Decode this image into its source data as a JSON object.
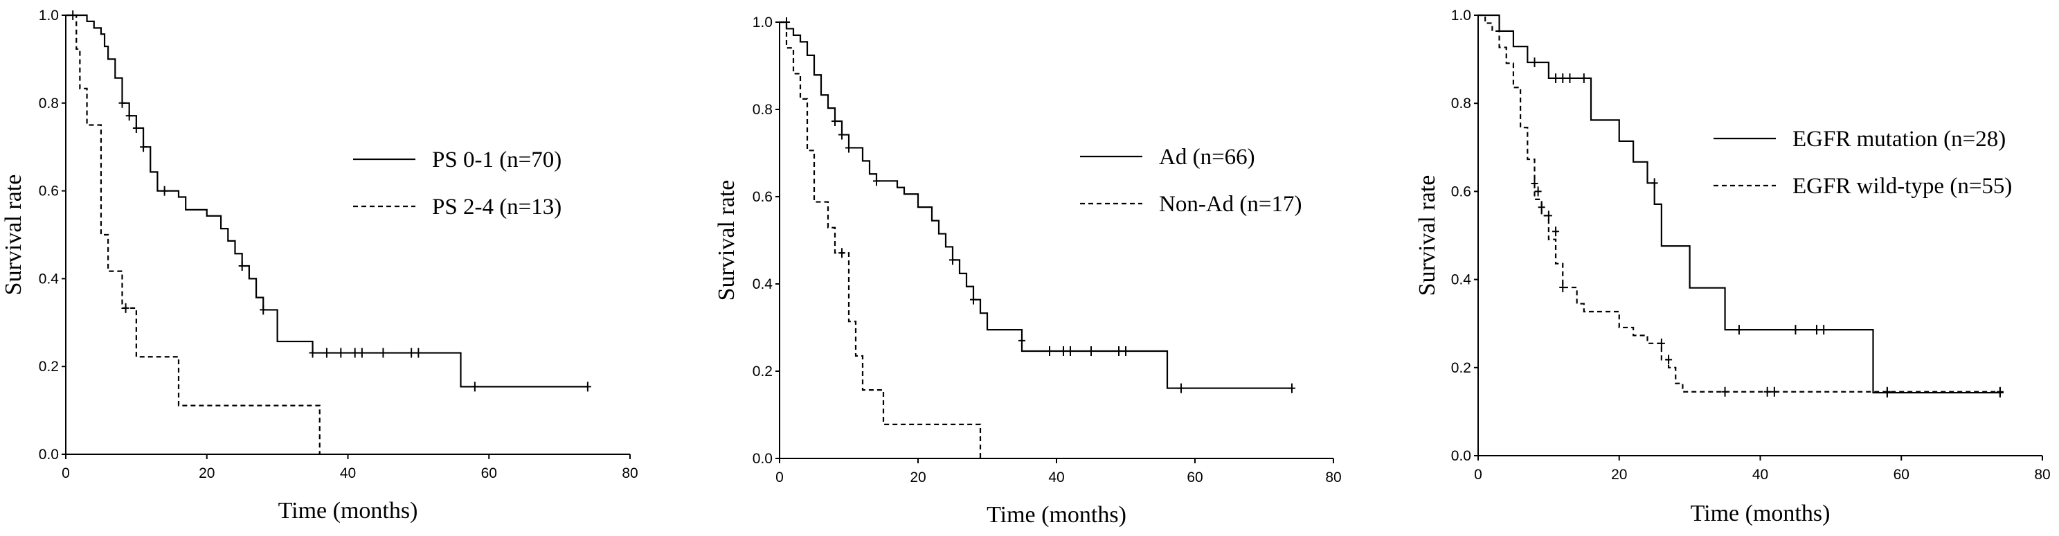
{
  "chart_data": [
    {
      "type": "line",
      "xlabel": "Time (months)",
      "ylabel": "Survival rate",
      "xlim": [
        0,
        80
      ],
      "ylim": [
        0,
        1.0
      ],
      "x_ticks": [
        0,
        20,
        40,
        60,
        80
      ],
      "y_ticks": [
        0.0,
        0.2,
        0.4,
        0.6,
        0.8,
        1.0
      ],
      "legend_position": "right",
      "series": [
        {
          "name": "PS 0-1 (n=70)",
          "style": "solid",
          "steps": [
            [
              0,
              1.0
            ],
            [
              2,
              1.0
            ],
            [
              3,
              0.986
            ],
            [
              4,
              0.971
            ],
            [
              5,
              0.957
            ],
            [
              5.5,
              0.929
            ],
            [
              6,
              0.9
            ],
            [
              7,
              0.857
            ],
            [
              8,
              0.8
            ],
            [
              9,
              0.771
            ],
            [
              10,
              0.743
            ],
            [
              11,
              0.7
            ],
            [
              12,
              0.643
            ],
            [
              13,
              0.6
            ],
            [
              16,
              0.586
            ],
            [
              17,
              0.557
            ],
            [
              20,
              0.543
            ],
            [
              22,
              0.514
            ],
            [
              23,
              0.486
            ],
            [
              24,
              0.457
            ],
            [
              25,
              0.429
            ],
            [
              26,
              0.4
            ],
            [
              27,
              0.357
            ],
            [
              28,
              0.329
            ],
            [
              30,
              0.257
            ],
            [
              35,
              0.231
            ],
            [
              56,
              0.154
            ],
            [
              74,
              0.154
            ]
          ],
          "censored": [
            [
              8,
              0.8
            ],
            [
              9,
              0.771
            ],
            [
              10,
              0.743
            ],
            [
              11,
              0.7
            ],
            [
              14,
              0.6
            ],
            [
              25,
              0.429
            ],
            [
              28,
              0.329
            ],
            [
              35,
              0.231
            ],
            [
              37,
              0.231
            ],
            [
              39,
              0.231
            ],
            [
              41,
              0.231
            ],
            [
              42,
              0.231
            ],
            [
              45,
              0.231
            ],
            [
              49,
              0.231
            ],
            [
              50,
              0.231
            ],
            [
              58,
              0.154
            ],
            [
              74,
              0.154
            ]
          ]
        },
        {
          "name": "PS 2-4 (n=13)",
          "style": "dashed",
          "steps": [
            [
              0,
              1.0
            ],
            [
              1.5,
              0.923
            ],
            [
              2,
              0.833
            ],
            [
              3,
              0.75
            ],
            [
              5,
              0.5
            ],
            [
              6,
              0.417
            ],
            [
              8,
              0.333
            ],
            [
              10,
              0.222
            ],
            [
              16,
              0.111
            ],
            [
              36,
              0.0
            ]
          ],
          "censored": [
            [
              1,
              1.0
            ],
            [
              8.5,
              0.333
            ]
          ]
        }
      ]
    },
    {
      "type": "line",
      "xlabel": "Time (months)",
      "ylabel": "Survival rate",
      "xlim": [
        0,
        80
      ],
      "ylim": [
        0,
        1.0
      ],
      "x_ticks": [
        0,
        20,
        40,
        60,
        80
      ],
      "y_ticks": [
        0.0,
        0.2,
        0.4,
        0.6,
        0.8,
        1.0
      ],
      "legend_position": "right",
      "series": [
        {
          "name": "Ad (n=66)",
          "style": "solid",
          "steps": [
            [
              0,
              1.0
            ],
            [
              1,
              0.985
            ],
            [
              2,
              0.97
            ],
            [
              3,
              0.955
            ],
            [
              4,
              0.924
            ],
            [
              5,
              0.879
            ],
            [
              6,
              0.833
            ],
            [
              7,
              0.803
            ],
            [
              8,
              0.773
            ],
            [
              9,
              0.742
            ],
            [
              10,
              0.712
            ],
            [
              12,
              0.682
            ],
            [
              13,
              0.652
            ],
            [
              14,
              0.636
            ],
            [
              17,
              0.621
            ],
            [
              18,
              0.606
            ],
            [
              20,
              0.576
            ],
            [
              22,
              0.545
            ],
            [
              23,
              0.515
            ],
            [
              24,
              0.485
            ],
            [
              25,
              0.455
            ],
            [
              26,
              0.424
            ],
            [
              27,
              0.394
            ],
            [
              28,
              0.364
            ],
            [
              29,
              0.333
            ],
            [
              30,
              0.295
            ],
            [
              35,
              0.246
            ],
            [
              56,
              0.161
            ],
            [
              74,
              0.161
            ]
          ],
          "censored": [
            [
              8,
              0.773
            ],
            [
              9,
              0.742
            ],
            [
              10,
              0.712
            ],
            [
              14,
              0.636
            ],
            [
              25,
              0.455
            ],
            [
              28,
              0.364
            ],
            [
              35,
              0.27
            ],
            [
              39,
              0.246
            ],
            [
              41,
              0.246
            ],
            [
              42,
              0.246
            ],
            [
              45,
              0.246
            ],
            [
              49,
              0.246
            ],
            [
              50,
              0.246
            ],
            [
              58,
              0.161
            ],
            [
              74,
              0.161
            ]
          ]
        },
        {
          "name": "Non-Ad (n=17)",
          "style": "dashed",
          "steps": [
            [
              0,
              1.0
            ],
            [
              1,
              0.941
            ],
            [
              2,
              0.882
            ],
            [
              3,
              0.824
            ],
            [
              4,
              0.706
            ],
            [
              5,
              0.588
            ],
            [
              7,
              0.529
            ],
            [
              8,
              0.471
            ],
            [
              10,
              0.314
            ],
            [
              11,
              0.235
            ],
            [
              12,
              0.157
            ],
            [
              15,
              0.078
            ],
            [
              29,
              0.0
            ]
          ],
          "censored": [
            [
              1,
              1.0
            ],
            [
              9,
              0.471
            ]
          ]
        }
      ]
    },
    {
      "type": "line",
      "xlabel": "Time (months)",
      "ylabel": "Survival rate",
      "xlim": [
        0,
        80
      ],
      "ylim": [
        0,
        1.0
      ],
      "x_ticks": [
        0,
        20,
        40,
        60,
        80
      ],
      "y_ticks": [
        0.0,
        0.2,
        0.4,
        0.6,
        0.8,
        1.0
      ],
      "legend_position": "right",
      "series": [
        {
          "name": "EGFR mutation (n=28)",
          "style": "solid",
          "steps": [
            [
              0,
              1.0
            ],
            [
              3,
              0.964
            ],
            [
              5,
              0.929
            ],
            [
              7,
              0.893
            ],
            [
              10,
              0.857
            ],
            [
              16,
              0.762
            ],
            [
              20,
              0.714
            ],
            [
              22,
              0.667
            ],
            [
              24,
              0.619
            ],
            [
              25,
              0.571
            ],
            [
              26,
              0.476
            ],
            [
              30,
              0.381
            ],
            [
              35,
              0.286
            ],
            [
              56,
              0.143
            ],
            [
              74,
              0.143
            ]
          ],
          "censored": [
            [
              8,
              0.893
            ],
            [
              11,
              0.857
            ],
            [
              12,
              0.857
            ],
            [
              13,
              0.857
            ],
            [
              15,
              0.857
            ],
            [
              25,
              0.619
            ],
            [
              37,
              0.286
            ],
            [
              45,
              0.286
            ],
            [
              48,
              0.286
            ],
            [
              49,
              0.286
            ],
            [
              58,
              0.143
            ],
            [
              74,
              0.143
            ]
          ]
        },
        {
          "name": "EGFR wild-type (n=55)",
          "style": "dashed",
          "steps": [
            [
              0,
              1.0
            ],
            [
              1,
              0.982
            ],
            [
              2,
              0.964
            ],
            [
              3,
              0.927
            ],
            [
              4,
              0.891
            ],
            [
              5,
              0.836
            ],
            [
              6,
              0.745
            ],
            [
              7,
              0.673
            ],
            [
              8,
              0.582
            ],
            [
              9,
              0.545
            ],
            [
              10,
              0.491
            ],
            [
              11,
              0.436
            ],
            [
              12,
              0.382
            ],
            [
              14,
              0.345
            ],
            [
              15,
              0.327
            ],
            [
              20,
              0.291
            ],
            [
              22,
              0.273
            ],
            [
              24,
              0.255
            ],
            [
              26,
              0.218
            ],
            [
              27,
              0.2
            ],
            [
              28,
              0.164
            ],
            [
              29,
              0.145
            ],
            [
              74,
              0.145
            ]
          ],
          "censored": [
            [
              8,
              0.618
            ],
            [
              8.5,
              0.6
            ],
            [
              9,
              0.564
            ],
            [
              10,
              0.545
            ],
            [
              11,
              0.509
            ],
            [
              12,
              0.382
            ],
            [
              26,
              0.255
            ],
            [
              27,
              0.218
            ],
            [
              35,
              0.145
            ],
            [
              41,
              0.145
            ],
            [
              42,
              0.145
            ],
            [
              58,
              0.145
            ],
            [
              74,
              0.145
            ]
          ]
        }
      ]
    }
  ]
}
